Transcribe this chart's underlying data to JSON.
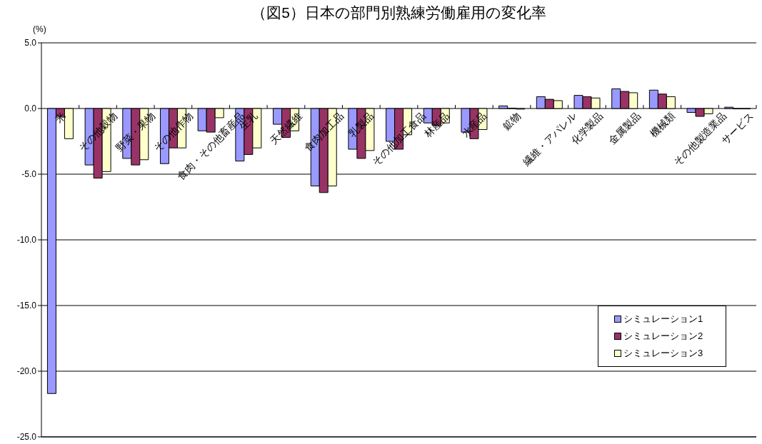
{
  "chart_data": {
    "type": "bar",
    "title": "（図5）日本の部門別熟練労働雇用の変化率",
    "ylabel": "(%)",
    "categories": [
      "米",
      "その他穀物",
      "野菜・果物",
      "その他作物",
      "食肉・その他畜産品",
      "生乳",
      "天然繊維",
      "食肉加工品",
      "乳製品",
      "その他加工食品",
      "林産品",
      "水産品",
      "鉱物",
      "繊維・アパレル",
      "化学製品",
      "金属製品",
      "機械類",
      "その他製造業品",
      "サービス"
    ],
    "series": [
      {
        "name": "シミュレーション1",
        "color": "#9999ff",
        "values": [
          -21.7,
          -4.3,
          -3.8,
          -4.2,
          -1.7,
          -4.0,
          -1.2,
          -5.9,
          -3.1,
          -2.5,
          -1.1,
          -1.8,
          0.2,
          0.9,
          1.0,
          1.5,
          1.4,
          -0.3,
          0.1
        ]
      },
      {
        "name": "シミュレーション2",
        "color": "#993366",
        "values": [
          -0.6,
          -5.3,
          -4.3,
          -3.0,
          -1.8,
          -3.5,
          -2.2,
          -6.4,
          -3.8,
          -3.1,
          -1.3,
          -2.3,
          0.03,
          0.7,
          0.9,
          1.3,
          1.1,
          -0.6,
          -0.03
        ]
      },
      {
        "name": "シミュレーション3",
        "color": "#ffffcc",
        "values": [
          -2.3,
          -4.8,
          -3.9,
          -3.0,
          -0.7,
          -3.0,
          -1.7,
          -5.9,
          -3.2,
          -2.0,
          -1.1,
          -1.6,
          -0.05,
          0.6,
          0.8,
          1.2,
          0.9,
          -0.4,
          -0.03
        ]
      }
    ],
    "ylim": [
      -25,
      5
    ],
    "yticks": [
      {
        "value": 5,
        "label": "5.0"
      },
      {
        "value": 0,
        "label": "0.0"
      },
      {
        "value": -5,
        "label": "-5.0"
      },
      {
        "value": -10,
        "label": "-10.0"
      },
      {
        "value": -15,
        "label": "-15.0"
      },
      {
        "value": -20,
        "label": "-20.0"
      },
      {
        "value": -25,
        "label": "-25.0"
      }
    ],
    "grid": "y",
    "legend": "bottom right"
  }
}
